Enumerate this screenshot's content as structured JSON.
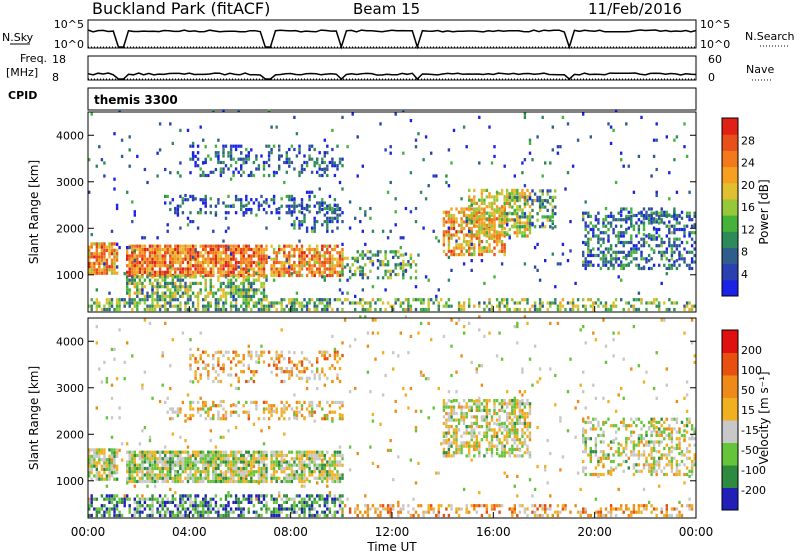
{
  "header": {
    "station": "Buckland Park (fitACF)",
    "beam": "Beam 15",
    "date": "11/Feb/2016"
  },
  "status_panels": {
    "nsky_label": "N.Sky",
    "nsky_ticks": [
      "10^5",
      "10^0"
    ],
    "nsearch_label": "N.Search",
    "nsearch_ticks": [
      "10^5",
      "10^0"
    ],
    "freq_label_1": "Freq.",
    "freq_label_2": "[MHz]",
    "freq_ticks": [
      "18",
      "8"
    ],
    "nave_label": "Nave",
    "nave_ticks": [
      "60",
      "0"
    ],
    "cpid_label": "CPID",
    "cpid_value": "themis 3300"
  },
  "chart_data": [
    {
      "type": "heatmap",
      "name": "power",
      "ylabel": "Slant Range [km]",
      "yticks": [
        "4000",
        "3000",
        "2000",
        "1000"
      ],
      "ylim": [
        200,
        4500
      ],
      "colorbar_label": "Power [dB]",
      "colorbar_ticks": [
        "28",
        "24",
        "20",
        "16",
        "12",
        "8",
        "4"
      ],
      "colors": [
        "#1a22e6",
        "#2a3fb0",
        "#2f5e8c",
        "#2f8a5a",
        "#45b23a",
        "#96c83a",
        "#e0c02e",
        "#f5a020",
        "#f27a1a",
        "#e8501a",
        "#e02216"
      ],
      "regions": [
        {
          "t": [
            0,
            1.2
          ],
          "r": [
            1000,
            1700
          ],
          "level": 0.72,
          "density": 0.85
        },
        {
          "t": [
            1.5,
            7.0
          ],
          "r": [
            950,
            1650
          ],
          "level": 0.78,
          "density": 0.85
        },
        {
          "t": [
            7.2,
            10.0
          ],
          "r": [
            950,
            1650
          ],
          "level": 0.72,
          "density": 0.75
        },
        {
          "t": [
            1.5,
            7.0
          ],
          "r": [
            500,
            950
          ],
          "level": 0.45,
          "density": 0.6
        },
        {
          "t": [
            0,
            10.0
          ],
          "r": [
            220,
            450
          ],
          "level": 0.4,
          "density": 0.6
        },
        {
          "t": [
            3.0,
            10.0
          ],
          "r": [
            2300,
            2700
          ],
          "level": 0.15,
          "density": 0.35
        },
        {
          "t": [
            4.0,
            10.0
          ],
          "r": [
            3100,
            3800
          ],
          "level": 0.18,
          "density": 0.3
        },
        {
          "t": [
            8.0,
            10.0
          ],
          "r": [
            1900,
            2500
          ],
          "level": 0.25,
          "density": 0.35
        },
        {
          "t": [
            10.0,
            13.0
          ],
          "r": [
            900,
            1500
          ],
          "level": 0.4,
          "density": 0.4
        },
        {
          "t": [
            14.0,
            16.5
          ],
          "r": [
            1400,
            2400
          ],
          "level": 0.7,
          "density": 0.65
        },
        {
          "t": [
            15.0,
            17.5
          ],
          "r": [
            1800,
            2800
          ],
          "level": 0.6,
          "density": 0.55
        },
        {
          "t": [
            16.5,
            18.5
          ],
          "r": [
            2000,
            2800
          ],
          "level": 0.35,
          "density": 0.4
        },
        {
          "t": [
            19.5,
            24.0
          ],
          "r": [
            1100,
            2300
          ],
          "level": 0.25,
          "density": 0.45
        },
        {
          "t": [
            21.0,
            23.5
          ],
          "r": [
            2100,
            2400
          ],
          "level": 0.2,
          "density": 0.35
        },
        {
          "t": [
            10.0,
            24.0
          ],
          "r": [
            220,
            450
          ],
          "level": 0.45,
          "density": 0.4
        },
        {
          "t": [
            0,
            24.0
          ],
          "r": [
            500,
            4500
          ],
          "level": 0.2,
          "density": 0.03
        }
      ]
    },
    {
      "type": "heatmap",
      "name": "velocity",
      "ylabel": "Slant Range [km]",
      "yticks": [
        "4000",
        "3000",
        "2000",
        "1000"
      ],
      "ylim": [
        200,
        4500
      ],
      "colorbar_label": "Velocity [m s⁻¹]",
      "colorbar_ticks": [
        "200",
        "100",
        "50",
        "15",
        "-15",
        "-50",
        "-100",
        "-200"
      ],
      "colors": [
        "#2020b8",
        "#2e8a3e",
        "#66c43a",
        "#c8c8c8",
        "#f0b020",
        "#ee8a18",
        "#e85010",
        "#e01010"
      ],
      "regions": [
        {
          "t": [
            0,
            1.2
          ],
          "r": [
            1000,
            1700
          ],
          "level": 0.4,
          "density": 0.85
        },
        {
          "t": [
            1.5,
            7.0
          ],
          "r": [
            950,
            1650
          ],
          "level": 0.4,
          "density": 0.85
        },
        {
          "t": [
            7.2,
            10.0
          ],
          "r": [
            950,
            1650
          ],
          "level": 0.4,
          "density": 0.75
        },
        {
          "t": [
            0,
            10.0
          ],
          "r": [
            220,
            650
          ],
          "level": 0.2,
          "density": 0.55
        },
        {
          "t": [
            3.0,
            10.0
          ],
          "r": [
            2300,
            2700
          ],
          "level": 0.55,
          "density": 0.35
        },
        {
          "t": [
            4.0,
            10.0
          ],
          "r": [
            3100,
            3800
          ],
          "level": 0.6,
          "density": 0.3
        },
        {
          "t": [
            14.0,
            17.5
          ],
          "r": [
            1500,
            2700
          ],
          "level": 0.45,
          "density": 0.6
        },
        {
          "t": [
            19.5,
            24.0
          ],
          "r": [
            1100,
            2300
          ],
          "level": 0.45,
          "density": 0.45
        },
        {
          "t": [
            10.0,
            24.0
          ],
          "r": [
            220,
            450
          ],
          "level": 0.6,
          "density": 0.4
        },
        {
          "t": [
            0,
            24.0
          ],
          "r": [
            500,
            4500
          ],
          "level": 0.5,
          "density": 0.03
        }
      ]
    }
  ],
  "xaxis": {
    "ticks": [
      "00:00",
      "04:00",
      "08:00",
      "12:00",
      "16:00",
      "20:00",
      "00:00"
    ],
    "label": "Time UT"
  }
}
